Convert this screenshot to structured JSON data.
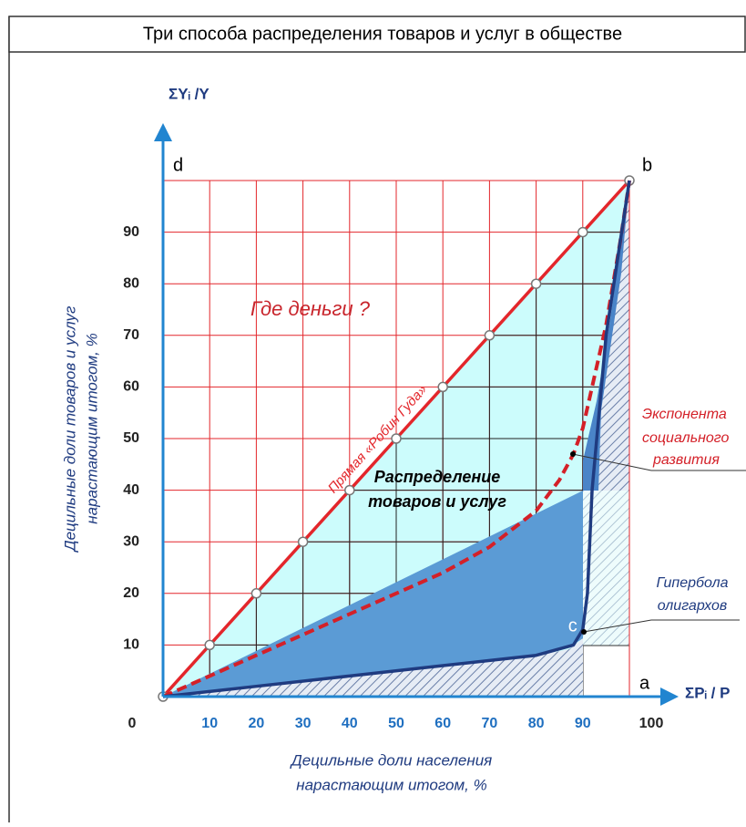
{
  "chart_data": {
    "type": "line",
    "title": "Три способа распределения товаров и услуг в обществе",
    "y_axis_label": "ΣYᵢ /Y",
    "x_axis_label": "ΣPᵢ / P",
    "x_title": [
      "Децильные доли населения",
      "нарастающим итогом, %"
    ],
    "y_title": [
      "Децильные доли товаров и услуг",
      "нарастающим итогом, %"
    ],
    "xlim": [
      0,
      100
    ],
    "ylim": [
      0,
      100
    ],
    "xticks": [
      0,
      10,
      20,
      30,
      40,
      50,
      60,
      70,
      80,
      90,
      100
    ],
    "yticks": [
      10,
      20,
      30,
      40,
      50,
      60,
      70,
      80,
      90
    ],
    "grid": true,
    "series": [
      {
        "name": "Прямая «Робин Гуда»",
        "color": "#e3262b",
        "markers": true,
        "x": [
          0,
          10,
          20,
          30,
          40,
          50,
          60,
          70,
          80,
          90,
          100
        ],
        "values": [
          0,
          10,
          20,
          30,
          40,
          50,
          60,
          70,
          80,
          90,
          100
        ]
      },
      {
        "label": [
          "Экспонента",
          "социального",
          "развития"
        ],
        "color": "#d42028",
        "dashed": true,
        "x": [
          0,
          20,
          40,
          60,
          70,
          80,
          85,
          88,
          90,
          92,
          95,
          98,
          100
        ],
        "values": [
          0,
          8,
          16,
          24,
          29,
          36,
          42,
          47,
          52,
          60,
          72,
          88,
          100
        ]
      },
      {
        "label": [
          "Гипербола",
          "олигархов"
        ],
        "color": "#1f3b80",
        "x": [
          0,
          20,
          40,
          60,
          80,
          88,
          90,
          91,
          92,
          95,
          100
        ],
        "values": [
          0,
          2,
          4,
          6,
          8,
          10,
          13,
          20,
          40,
          70,
          100
        ]
      }
    ],
    "annotations": {
      "question": "Где деньги ?",
      "region": [
        "Распределение",
        "товаров и услуг"
      ]
    },
    "points": [
      {
        "label": "d",
        "x": 0,
        "y": 100
      },
      {
        "label": "b",
        "x": 100,
        "y": 100
      },
      {
        "label": "c",
        "x": 90,
        "y": 10
      },
      {
        "label": "a",
        "x": 100,
        "y": 0
      }
    ]
  }
}
